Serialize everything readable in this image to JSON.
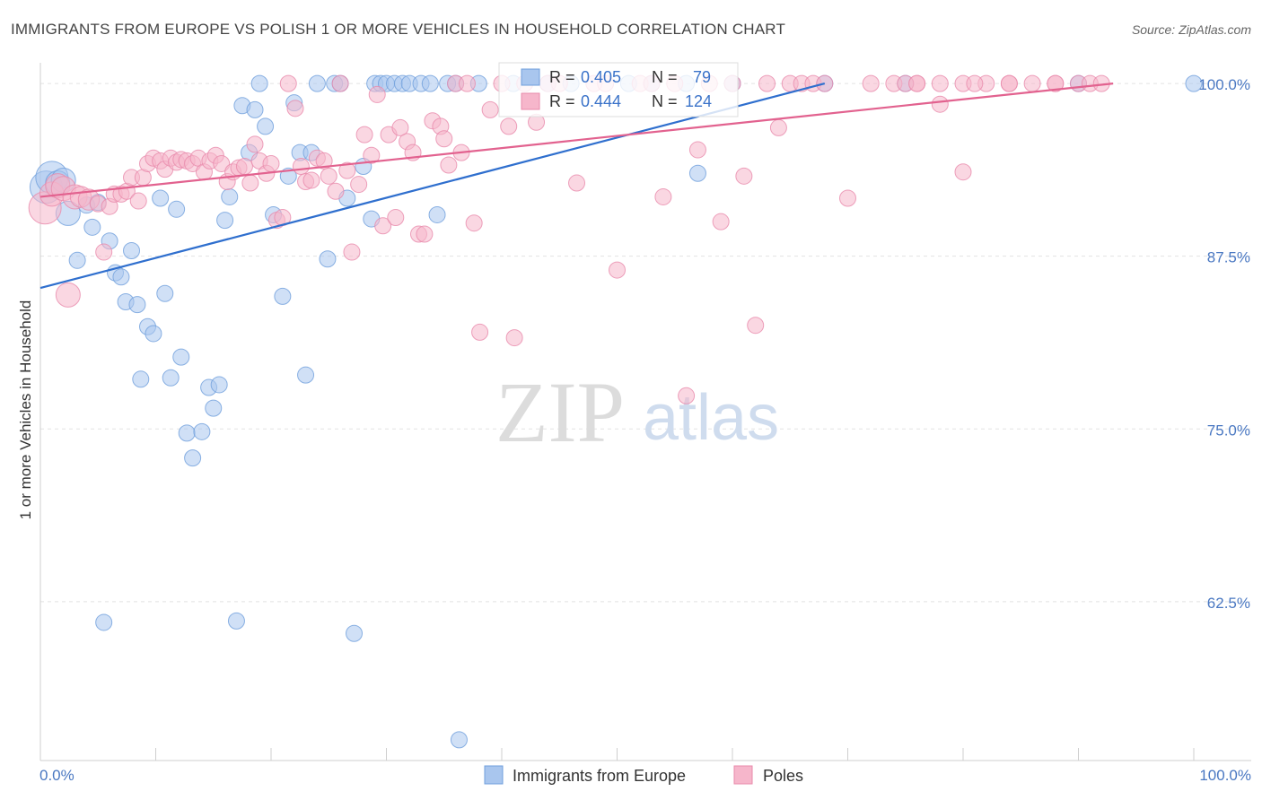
{
  "chart_data": {
    "type": "scatter",
    "title": "IMMIGRANTS FROM EUROPE VS POLISH 1 OR MORE VEHICLES IN HOUSEHOLD CORRELATION CHART",
    "source": "Source: ZipAtlas.com",
    "ylabel": "1 or more Vehicles in Household",
    "xlabel": "",
    "xlim": [
      0,
      100
    ],
    "ylim": [
      51,
      101.5
    ],
    "x_tick_labels": {
      "min": "0.0%",
      "max": "100.0%"
    },
    "y_ticks": [
      {
        "value": 100.0,
        "label": "100.0%"
      },
      {
        "value": 87.5,
        "label": "87.5%"
      },
      {
        "value": 75.0,
        "label": "75.0%"
      },
      {
        "value": 62.5,
        "label": "62.5%"
      }
    ],
    "grid": true,
    "watermark": {
      "zip": "ZIP",
      "atlas": "atlas"
    },
    "legend": {
      "r_label": "R =",
      "n_label": "N =",
      "entries": [
        {
          "name": "Immigrants from Europe",
          "r": "0.405",
          "n": "79"
        },
        {
          "name": "Poles",
          "r": "0.444",
          "n": "124"
        }
      ]
    },
    "series": [
      {
        "name": "Immigrants from Europe",
        "fill": "#a9c6ee",
        "stroke": "#6f9fdc",
        "line_color": "#2f6fce",
        "trend": {
          "x0": 0,
          "y0": 85.2,
          "x1": 68,
          "y1": 100.0
        },
        "points": [
          [
            0.5,
            92.5,
            2
          ],
          [
            1,
            93.2,
            2
          ],
          [
            1.5,
            92.8,
            1.5
          ],
          [
            2,
            93.0,
            1.5
          ],
          [
            2.4,
            90.6,
            1.5
          ],
          [
            3.2,
            87.2,
            1
          ],
          [
            4,
            91.2,
            1
          ],
          [
            4.5,
            89.6,
            1
          ],
          [
            5,
            91.4,
            1
          ],
          [
            5.5,
            61.0,
            1
          ],
          [
            6,
            88.6,
            1
          ],
          [
            6.5,
            86.3,
            1
          ],
          [
            7,
            86.0,
            1
          ],
          [
            7.4,
            84.2,
            1
          ],
          [
            7.9,
            87.9,
            1
          ],
          [
            8.4,
            84.0,
            1
          ],
          [
            8.7,
            78.6,
            1
          ],
          [
            9.3,
            82.4,
            1
          ],
          [
            9.8,
            81.9,
            1
          ],
          [
            10.4,
            91.7,
            1
          ],
          [
            10.8,
            84.8,
            1
          ],
          [
            11.3,
            78.7,
            1
          ],
          [
            11.8,
            90.9,
            1
          ],
          [
            12.2,
            80.2,
            1
          ],
          [
            12.7,
            74.7,
            1
          ],
          [
            13.2,
            72.9,
            1
          ],
          [
            14,
            74.8,
            1
          ],
          [
            14.6,
            78.0,
            1
          ],
          [
            15,
            76.5,
            1
          ],
          [
            15.5,
            78.2,
            1
          ],
          [
            16,
            90.1,
            1
          ],
          [
            16.4,
            91.8,
            1
          ],
          [
            17,
            61.1,
            1
          ],
          [
            17.5,
            98.4,
            1
          ],
          [
            18.1,
            95.0,
            1
          ],
          [
            18.6,
            98.1,
            1
          ],
          [
            19,
            100.0,
            1
          ],
          [
            19.5,
            96.9,
            1
          ],
          [
            20.2,
            90.5,
            1
          ],
          [
            21,
            84.6,
            1
          ],
          [
            21.5,
            93.3,
            1
          ],
          [
            22,
            98.6,
            1
          ],
          [
            22.5,
            95.0,
            1
          ],
          [
            23,
            78.9,
            1
          ],
          [
            23.5,
            95.0,
            1
          ],
          [
            24,
            100.0,
            1
          ],
          [
            24.9,
            87.3,
            1
          ],
          [
            25.5,
            100.0,
            1
          ],
          [
            26,
            100.0,
            1
          ],
          [
            26.6,
            91.7,
            1
          ],
          [
            27.2,
            60.2,
            1
          ],
          [
            28,
            94.0,
            1
          ],
          [
            28.7,
            90.2,
            1
          ],
          [
            29,
            100.0,
            1
          ],
          [
            29.5,
            100.0,
            1
          ],
          [
            30,
            100.0,
            1
          ],
          [
            30.7,
            100.0,
            1
          ],
          [
            31.4,
            100.0,
            1
          ],
          [
            32,
            100.0,
            1
          ],
          [
            33,
            100.0,
            1
          ],
          [
            33.8,
            100.0,
            1
          ],
          [
            34.4,
            90.5,
            1
          ],
          [
            35.3,
            100.0,
            1
          ],
          [
            36,
            100.0,
            1
          ],
          [
            36.3,
            52.5,
            1
          ],
          [
            38,
            100.0,
            1
          ],
          [
            41,
            100.0,
            1
          ],
          [
            44,
            100.0,
            1
          ],
          [
            46,
            100.0,
            1
          ],
          [
            51,
            100.0,
            1
          ],
          [
            53,
            100.0,
            1
          ],
          [
            56,
            100.0,
            1
          ],
          [
            57,
            93.5,
            1
          ],
          [
            60,
            100.0,
            1
          ],
          [
            68,
            100.0,
            1
          ],
          [
            75,
            100.0,
            1
          ],
          [
            90,
            100.0,
            1
          ],
          [
            100,
            100.0,
            1
          ]
        ]
      },
      {
        "name": "Poles",
        "fill": "#f6b6cb",
        "stroke": "#e88aab",
        "line_color": "#e2628f",
        "trend": {
          "x0": 0,
          "y0": 91.8,
          "x1": 93,
          "y1": 100.0
        },
        "points": [
          [
            0.4,
            91.0,
            2
          ],
          [
            1,
            92.0,
            1.5
          ],
          [
            1.5,
            92.6,
            1.5
          ],
          [
            2,
            92.4,
            1.5
          ],
          [
            2.4,
            84.7,
            1.5
          ],
          [
            3,
            91.8,
            1.5
          ],
          [
            3.5,
            91.8,
            1.3
          ],
          [
            4.2,
            91.6,
            1.3
          ],
          [
            5,
            91.3,
            1
          ],
          [
            5.5,
            87.8,
            1
          ],
          [
            6,
            91.1,
            1
          ],
          [
            6.4,
            92.0,
            1
          ],
          [
            7,
            92.0,
            1
          ],
          [
            7.5,
            92.2,
            1
          ],
          [
            7.9,
            93.2,
            1
          ],
          [
            8.5,
            91.5,
            1
          ],
          [
            8.9,
            93.2,
            1
          ],
          [
            9.3,
            94.2,
            1
          ],
          [
            9.8,
            94.6,
            1
          ],
          [
            10.4,
            94.4,
            1
          ],
          [
            10.8,
            93.8,
            1
          ],
          [
            11.3,
            94.6,
            1
          ],
          [
            11.8,
            94.3,
            1
          ],
          [
            12.2,
            94.5,
            1
          ],
          [
            12.7,
            94.4,
            1
          ],
          [
            13.2,
            94.2,
            1
          ],
          [
            13.7,
            94.6,
            1
          ],
          [
            14.2,
            93.6,
            1
          ],
          [
            14.7,
            94.4,
            1
          ],
          [
            15.2,
            94.8,
            1
          ],
          [
            15.7,
            94.2,
            1
          ],
          [
            16.2,
            92.9,
            1
          ],
          [
            16.7,
            93.6,
            1
          ],
          [
            17.2,
            93.9,
            1
          ],
          [
            17.7,
            94.0,
            1
          ],
          [
            18.2,
            92.8,
            1
          ],
          [
            18.6,
            95.6,
            1
          ],
          [
            19,
            94.4,
            1
          ],
          [
            19.6,
            93.5,
            1
          ],
          [
            20,
            94.2,
            1
          ],
          [
            20.5,
            90.1,
            1
          ],
          [
            21,
            90.3,
            1
          ],
          [
            21.5,
            100.0,
            1
          ],
          [
            22.1,
            98.2,
            1
          ],
          [
            22.6,
            94.0,
            1
          ],
          [
            23,
            92.9,
            1
          ],
          [
            23.5,
            93.0,
            1
          ],
          [
            24,
            94.6,
            1
          ],
          [
            24.6,
            94.4,
            1
          ],
          [
            25,
            93.3,
            1
          ],
          [
            25.6,
            92.2,
            1
          ],
          [
            26,
            100.0,
            1
          ],
          [
            26.6,
            93.7,
            1
          ],
          [
            27,
            87.8,
            1
          ],
          [
            27.6,
            92.7,
            1
          ],
          [
            28.1,
            96.3,
            1
          ],
          [
            28.7,
            94.8,
            1
          ],
          [
            29.2,
            99.2,
            1
          ],
          [
            29.7,
            89.7,
            1
          ],
          [
            30.2,
            96.3,
            1
          ],
          [
            30.8,
            90.3,
            1
          ],
          [
            31.2,
            96.8,
            1
          ],
          [
            31.8,
            95.8,
            1
          ],
          [
            32.3,
            95.0,
            1
          ],
          [
            32.8,
            89.1,
            1
          ],
          [
            33.3,
            89.1,
            1
          ],
          [
            34,
            97.3,
            1
          ],
          [
            34.7,
            96.9,
            1
          ],
          [
            35,
            96.0,
            1
          ],
          [
            35.4,
            94.1,
            1
          ],
          [
            36,
            100.0,
            1
          ],
          [
            36.5,
            95.0,
            1
          ],
          [
            37,
            100.0,
            1
          ],
          [
            37.6,
            89.9,
            1
          ],
          [
            38.1,
            82.0,
            1
          ],
          [
            39,
            98.1,
            1
          ],
          [
            40,
            100.0,
            1
          ],
          [
            40.6,
            96.9,
            1
          ],
          [
            41.1,
            81.6,
            1
          ],
          [
            42,
            100.0,
            1
          ],
          [
            43,
            97.2,
            1
          ],
          [
            44,
            100.0,
            1
          ],
          [
            45,
            100.0,
            1
          ],
          [
            46.5,
            92.8,
            1
          ],
          [
            48,
            100.0,
            1
          ],
          [
            49,
            100.0,
            1
          ],
          [
            50,
            86.5,
            1
          ],
          [
            52,
            100.0,
            1
          ],
          [
            53,
            100.0,
            1
          ],
          [
            54,
            91.8,
            1
          ],
          [
            55,
            100.0,
            1
          ],
          [
            56,
            77.4,
            1
          ],
          [
            57,
            95.2,
            1
          ],
          [
            58,
            100.0,
            1
          ],
          [
            59,
            90.0,
            1
          ],
          [
            60,
            100.0,
            1
          ],
          [
            61,
            93.3,
            1
          ],
          [
            62,
            82.5,
            1
          ],
          [
            63,
            100.0,
            1
          ],
          [
            64,
            96.8,
            1
          ],
          [
            65,
            100.0,
            1
          ],
          [
            66,
            100.0,
            1
          ],
          [
            67,
            100.0,
            1
          ],
          [
            68,
            100.0,
            1
          ],
          [
            70,
            91.7,
            1
          ],
          [
            72,
            100.0,
            1
          ],
          [
            74,
            100.0,
            1
          ],
          [
            76,
            100.0,
            1
          ],
          [
            78,
            100.0,
            1
          ],
          [
            80,
            100.0,
            1
          ],
          [
            82,
            100.0,
            1
          ],
          [
            84,
            100.0,
            1
          ],
          [
            86,
            100.0,
            1
          ],
          [
            88,
            100.0,
            1
          ],
          [
            90,
            100.0,
            1
          ],
          [
            75,
            100.0,
            1
          ],
          [
            76,
            100.0,
            1
          ],
          [
            78,
            98.5,
            1
          ],
          [
            80,
            93.6,
            1
          ],
          [
            81,
            100.0,
            1
          ],
          [
            84,
            100.0,
            1
          ],
          [
            88,
            100.0,
            1
          ],
          [
            91,
            100.0,
            1
          ],
          [
            92,
            100.0,
            1
          ]
        ]
      }
    ]
  }
}
